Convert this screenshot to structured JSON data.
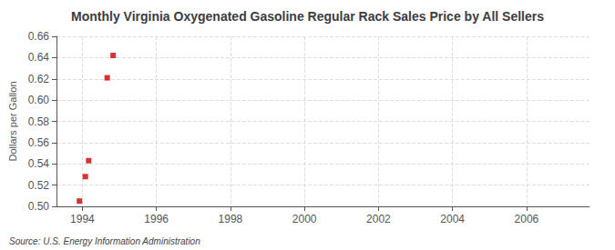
{
  "chart_data": {
    "type": "scatter",
    "title": "Monthly Virginia Oxygenated Gasoline Regular Rack Sales Price by All Sellers",
    "ylabel": "Dollars per Gallon",
    "source": "Source: U.S. Energy Information Administration",
    "x": [
      1993.92,
      1994.08,
      1994.17,
      1994.67,
      1994.83
    ],
    "values": [
      0.505,
      0.528,
      0.543,
      0.621,
      0.642
    ],
    "color": "#cc0000",
    "marker": "square",
    "xlim": [
      1993.3,
      2007.7
    ],
    "ylim": [
      0.5,
      0.66
    ],
    "xticks": [
      1994,
      1996,
      1998,
      2000,
      2002,
      2004,
      2006
    ],
    "yticks": [
      {
        "value": 0.5,
        "label": "0.50"
      },
      0.52,
      0.54,
      0.56,
      0.58,
      {
        "value": 0.6,
        "label": "0.60"
      },
      0.62,
      0.64,
      {
        "value": 0.66,
        "label": "0.66"
      }
    ],
    "grid": true
  }
}
